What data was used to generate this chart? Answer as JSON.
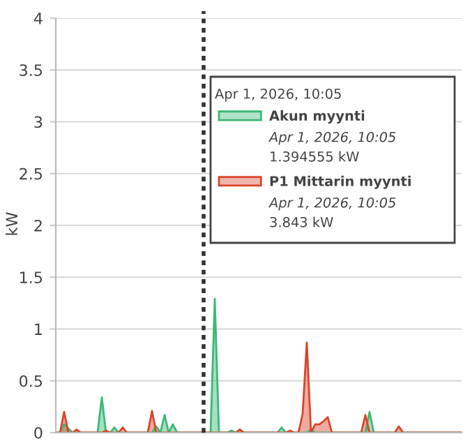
{
  "chart_data": {
    "type": "area",
    "ylabel": "kW",
    "categories": [
      null,
      null,
      null,
      null,
      null,
      null,
      null,
      null,
      null,
      null,
      null,
      null,
      null,
      null,
      null,
      null,
      null,
      null,
      null,
      null,
      null,
      null,
      null,
      null,
      null,
      null,
      null,
      null,
      null,
      null,
      null,
      null,
      null,
      null,
      null,
      null,
      null,
      null,
      null,
      null,
      null,
      null,
      null,
      null,
      null,
      null,
      null,
      null,
      null,
      null,
      null,
      null,
      null,
      null,
      null,
      null,
      null,
      null,
      null,
      null,
      null,
      null,
      null,
      null,
      null,
      null,
      null,
      null,
      null,
      null,
      null,
      null,
      null,
      null,
      null,
      null,
      null,
      null,
      null,
      null,
      null,
      null,
      null,
      null,
      null,
      null,
      null,
      null,
      null,
      null,
      null,
      null,
      null,
      null,
      null,
      null,
      null,
      null
    ],
    "ylim": [
      0,
      4
    ],
    "yticks": [
      0,
      0.5,
      1,
      1.5,
      2,
      2.5,
      3,
      3.5,
      4
    ],
    "grid": "y",
    "tick_labels": "y",
    "series": [
      {
        "name": "Akun myynti",
        "color": "#3cb878",
        "values": [
          0,
          0,
          0.08,
          0.04,
          0,
          0,
          0,
          0,
          0,
          0,
          0,
          0.34,
          0,
          0,
          0.05,
          0,
          0,
          0,
          0,
          0,
          0,
          0,
          0,
          0,
          0.06,
          0,
          0.17,
          0,
          0.08,
          0,
          0,
          0,
          0,
          0,
          0,
          0,
          0,
          0,
          1.29,
          0,
          0,
          0,
          0.02,
          0,
          0.03,
          0,
          0,
          0,
          0,
          0,
          0,
          0,
          0,
          0,
          0.05,
          0,
          0,
          0,
          0,
          0,
          0,
          0.03,
          0,
          0,
          0,
          0,
          0,
          0,
          0,
          0,
          0,
          0,
          0,
          0,
          0,
          0.2,
          0,
          0,
          0,
          0,
          0,
          0,
          0,
          0,
          0,
          0,
          0,
          0,
          0,
          0,
          0,
          0,
          0,
          0,
          0,
          0,
          0,
          0
        ]
      },
      {
        "name": "P1 Mittarin myynti",
        "color": "#d9452b",
        "values": [
          0,
          0,
          0.2,
          0,
          0,
          0.03,
          0,
          0,
          0,
          0,
          0,
          0,
          0.02,
          0,
          0,
          0,
          0.05,
          0,
          0,
          0,
          0,
          0,
          0,
          0.21,
          0,
          0,
          0,
          0,
          0,
          0,
          0,
          0,
          0,
          0,
          0,
          0,
          0,
          0,
          0,
          0,
          0,
          0,
          0,
          0,
          0.03,
          0,
          0,
          0,
          0,
          0,
          0,
          0,
          0,
          0,
          0,
          0,
          0.02,
          0,
          0,
          0.18,
          0.87,
          0,
          0.08,
          0.08,
          0.11,
          0.15,
          0,
          0,
          0,
          0,
          0,
          0,
          0,
          0,
          0.17,
          0,
          0,
          0,
          0,
          0,
          0,
          0,
          0.06,
          0,
          0,
          0,
          0,
          0,
          0,
          0,
          0,
          0,
          0,
          0,
          0,
          0,
          0,
          0
        ]
      }
    ],
    "legend": "top right",
    "annotations": [
      "Apr 1, 2026, 10:05",
      "Apr 1, 2026, 10:05",
      "1.394555 kW",
      "Apr 1, 2026, 10:05",
      "3.843 kW"
    ]
  }
}
